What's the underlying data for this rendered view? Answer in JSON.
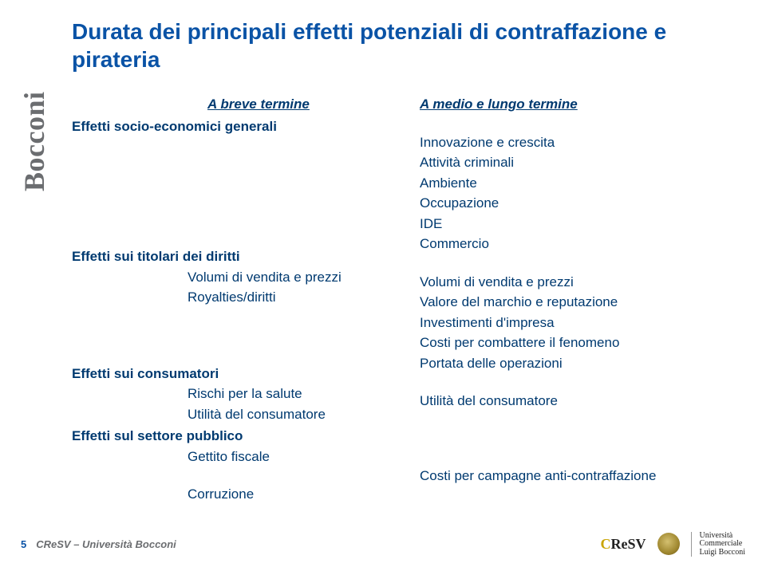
{
  "sidebar_brand": "Bocconi",
  "title": "Durata dei principali effetti potenziali di contraffazione e pirateria",
  "columns": {
    "left": {
      "header": "A breve termine",
      "sections": {
        "s1": {
          "head": "Effetti socio-economici generali",
          "items": []
        },
        "s2": {
          "head": "Effetti sui titolari dei diritti",
          "items": [
            "Volumi di vendita e prezzi",
            "Royalties/diritti"
          ]
        },
        "s3": {
          "head": "Effetti sui consumatori",
          "items": [
            "Rischi per la salute",
            "Utilità del consumatore"
          ]
        },
        "s4": {
          "head": "Effetti sul settore pubblico",
          "items": [
            "Gettito fiscale",
            "Corruzione"
          ]
        }
      }
    },
    "right": {
      "header": "A medio e lungo termine",
      "blocks": {
        "b1": [
          "Innovazione e crescita",
          "Attività criminali",
          "Ambiente",
          "Occupazione",
          "IDE",
          "Commercio"
        ],
        "b2": [
          "Volumi di vendita e prezzi",
          "Valore del marchio e reputazione",
          "Investimenti d'impresa",
          "Costi per combattere il fenomeno",
          "Portata delle operazioni"
        ],
        "b3": [
          "Utilità del consumatore"
        ],
        "b4": [
          "Costi per campagne anti-contraffazione"
        ]
      }
    }
  },
  "footer": {
    "page": "5",
    "org": "CReSV – Università Bocconi",
    "cresv": "CReSV",
    "ub_line1": "Università",
    "ub_line2": "Commerciale",
    "ub_line3": "Luigi Bocconi"
  },
  "colors": {
    "title": "#0a53a6",
    "body": "#003a70",
    "sidebar": "#6b6d70",
    "background": "#ffffff"
  }
}
